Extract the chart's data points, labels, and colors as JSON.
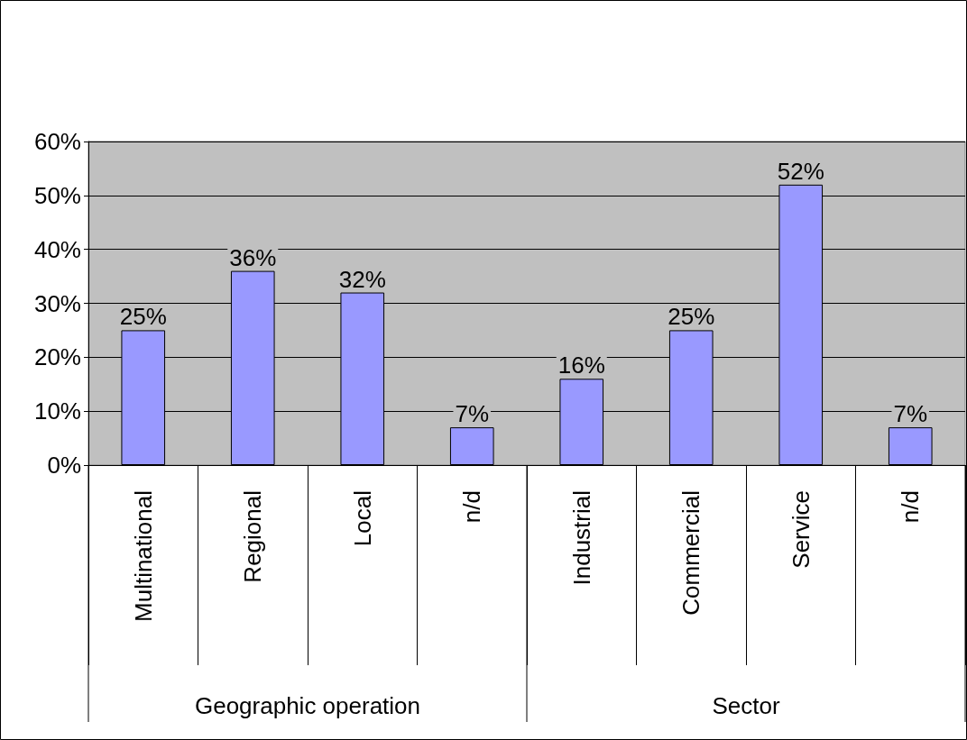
{
  "chart_data": {
    "type": "bar",
    "categories": [
      "Multinational",
      "Regional",
      "Local",
      "n/d",
      "Industrial",
      "Commercial",
      "Service",
      "n/d"
    ],
    "values": [
      25,
      36,
      32,
      7,
      16,
      25,
      52,
      7
    ],
    "value_labels": [
      "25%",
      "36%",
      "32%",
      "7%",
      "16%",
      "25%",
      "52%",
      "7%"
    ],
    "color": "#9999ff",
    "ylim": [
      0,
      60
    ],
    "yticks": [
      {
        "value": 0,
        "label": "0%"
      },
      {
        "value": 10,
        "label": "10%"
      },
      {
        "value": 20,
        "label": "20%"
      },
      {
        "value": 30,
        "label": "30%"
      },
      {
        "value": 40,
        "label": "40%"
      },
      {
        "value": 50,
        "label": "50%"
      },
      {
        "value": 60,
        "label": "60%"
      }
    ],
    "grid": "y",
    "annotations": [
      "Geographic operation",
      "Sector"
    ]
  }
}
